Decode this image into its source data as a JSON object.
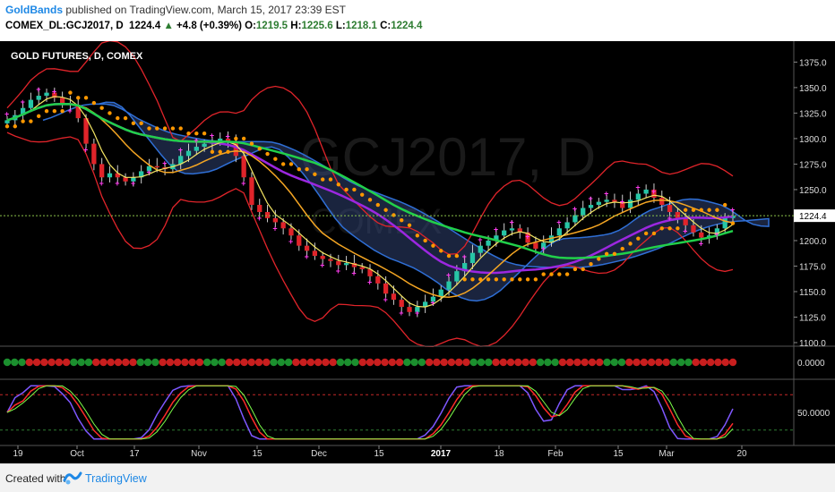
{
  "header": {
    "author": "GoldBands",
    "published": " published on TradingView.com, March 15, 2017 23:39 EST",
    "symbol": "COMEX_DL:GCJ2017, D",
    "last": "1224.4",
    "change": "+4.8 (+0.39%)",
    "o_label": "O:",
    "o": "1219.5",
    "h_label": "H:",
    "h": "1225.6",
    "l_label": "L:",
    "l": "1218.1",
    "c_label": "C:",
    "c": "1224.4"
  },
  "watermark": "GCJ2017, D",
  "watermark_sub": "COMEX",
  "footer": {
    "created": "Created with",
    "brand": "TradingView"
  },
  "chart_data": {
    "type": "candlestick",
    "title": "GOLD FUTURES, D, COMEX",
    "price_ticks": [
      "1375.0",
      "1350.0",
      "1325.0",
      "1300.0",
      "1275.0",
      "1250.0",
      "1225.0",
      "1200.0",
      "1175.0",
      "1150.0",
      "1125.0",
      "1100.0"
    ],
    "price_range": [
      1100,
      1385
    ],
    "current_price": "1224.4",
    "date_ticks": [
      "19",
      "Oct",
      "17",
      "Nov",
      "15",
      "Dec",
      "15",
      "2017",
      "18",
      "Feb",
      "15",
      "Mar",
      "20"
    ],
    "close": [
      1318,
      1323,
      1330,
      1338,
      1342,
      1345,
      1340,
      1335,
      1333,
      1320,
      1295,
      1275,
      1262,
      1266,
      1262,
      1258,
      1262,
      1268,
      1273,
      1272,
      1270,
      1275,
      1283,
      1288,
      1292,
      1295,
      1297,
      1300,
      1296,
      1283,
      1262,
      1235,
      1228,
      1222,
      1218,
      1212,
      1205,
      1195,
      1190,
      1185,
      1182,
      1180,
      1176,
      1178,
      1174,
      1172,
      1165,
      1158,
      1148,
      1142,
      1135,
      1130,
      1135,
      1140,
      1145,
      1152,
      1160,
      1170,
      1178,
      1188,
      1195,
      1200,
      1205,
      1210,
      1212,
      1208,
      1198,
      1192,
      1198,
      1205,
      1212,
      1218,
      1225,
      1232,
      1235,
      1238,
      1240,
      1238,
      1232,
      1240,
      1246,
      1250,
      1242,
      1235,
      1228,
      1222,
      1215,
      1208,
      1203,
      1205,
      1212,
      1222,
      1224.4
    ],
    "lines": {
      "sma_slow": "purple",
      "ema_fast": "orange",
      "tenkan": "yellow",
      "lower_ma": "green"
    },
    "indicator1": {
      "type": "dots",
      "value_label": "0.0000"
    },
    "indicator2": {
      "type": "stochastic",
      "value_label": "50.0000",
      "upper_level": 80,
      "lower_level": 20
    }
  }
}
